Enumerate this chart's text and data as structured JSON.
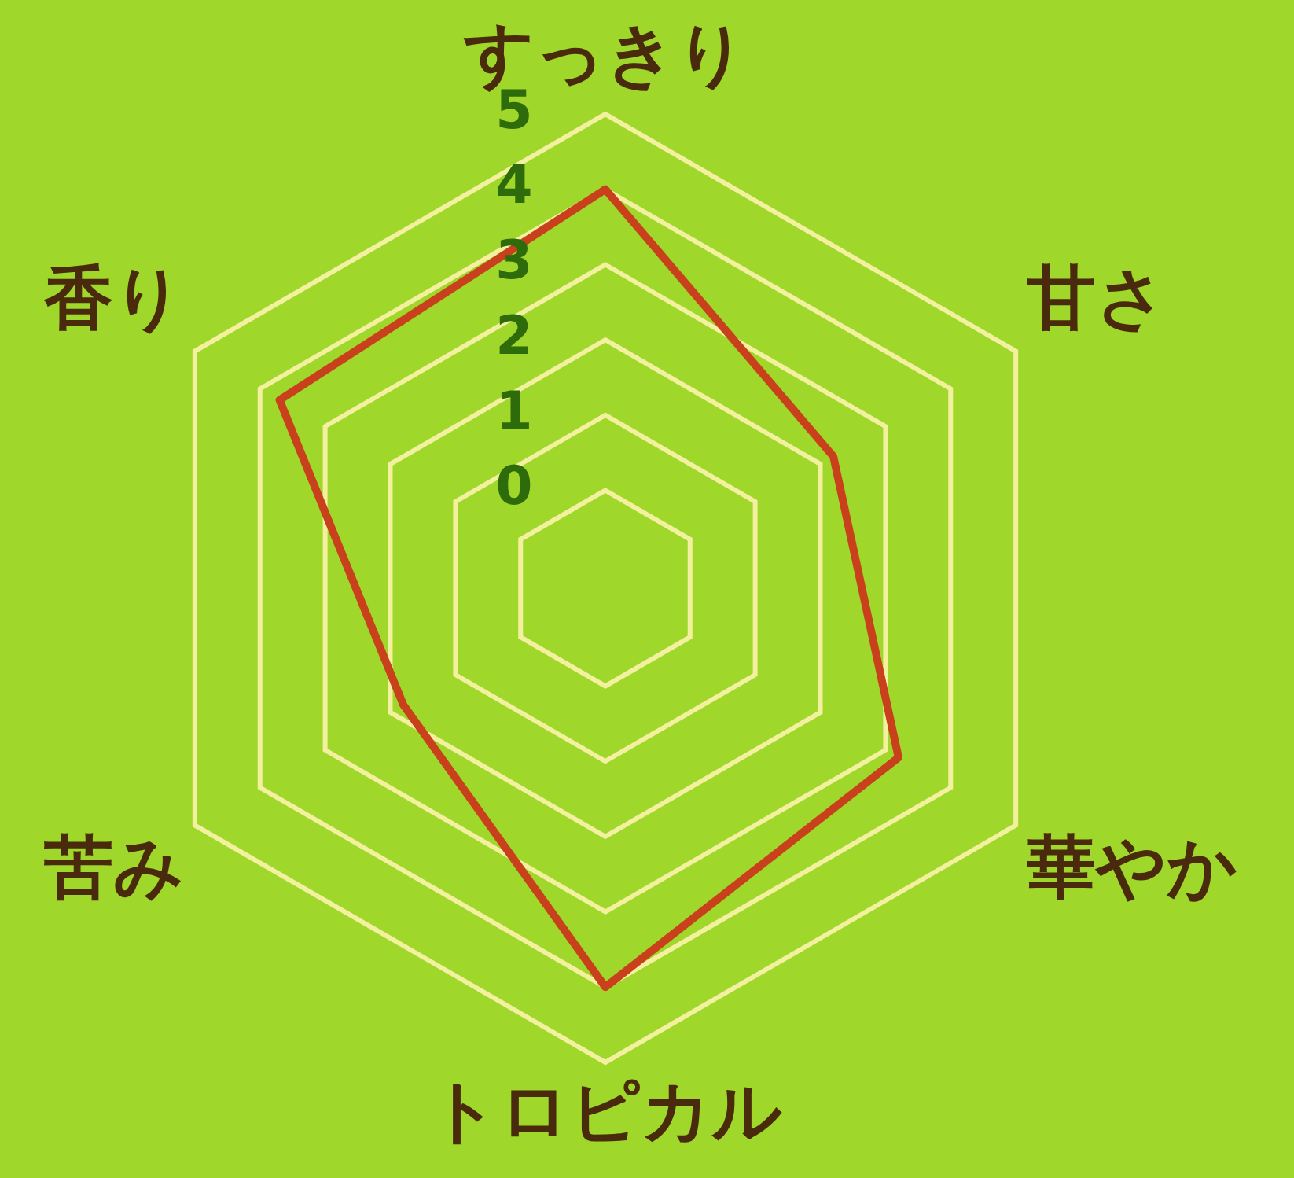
{
  "chart_data": {
    "type": "radar",
    "categories": [
      "すっきり",
      "甘さ",
      "華やか",
      "トロピカル",
      "苦み",
      "香り"
    ],
    "series": [
      {
        "color": "#c8401c",
        "values": [
          4.0,
          2.2,
          3.2,
          4.0,
          1.8,
          3.7
        ]
      }
    ],
    "ylim": [
      -1.3,
      5
    ],
    "yticks": [
      0,
      1,
      2,
      3,
      4,
      5
    ],
    "grid": true,
    "legend": false,
    "marker": "none",
    "line_style": "solid"
  }
}
